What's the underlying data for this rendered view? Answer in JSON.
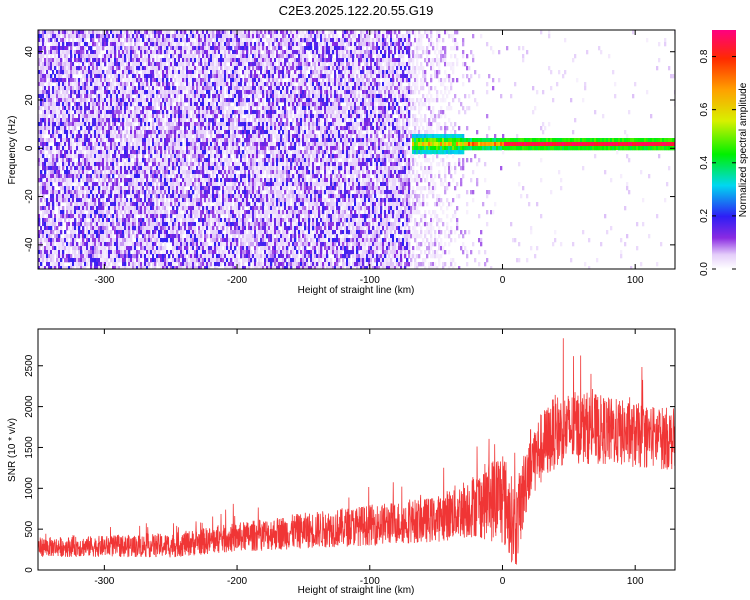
{
  "page": {
    "title": "C2E3.2025.122.20.55.G19"
  },
  "chart_data": [
    {
      "type": "heatmap",
      "title": "C2E3.2025.122.20.55.G19",
      "xlabel": "Height of straight line (km)",
      "ylabel": "Frequency (Hz)",
      "xlim": [
        -350,
        130
      ],
      "ylim": [
        -50,
        49
      ],
      "x_ticks": [
        -300,
        -200,
        -100,
        0,
        100
      ],
      "y_ticks": [
        -40,
        -20,
        0,
        20,
        40
      ],
      "colorbar": {
        "label": "Normalized spectral amplitude",
        "range": [
          0.0,
          0.9
        ],
        "ticks": [
          0.0,
          0.2,
          0.4,
          0.6,
          0.8
        ]
      },
      "features": {
        "noise_region_x": [
          -350,
          -70
        ],
        "transition_region_x": [
          -70,
          5
        ],
        "tone_x": [
          -68,
          130
        ],
        "tone_frequency_hz": 2,
        "tone_peak_amplitude": 0.85,
        "noise_amplitude": 0.1
      },
      "grid": false,
      "legend": "none"
    },
    {
      "type": "line",
      "xlabel": "Height of straight line (km)",
      "ylabel": "SNR (10 * v/v)",
      "xlim": [
        -350,
        130
      ],
      "ylim": [
        0,
        2950
      ],
      "x_ticks": [
        -300,
        -200,
        -100,
        0,
        100
      ],
      "y_ticks": [
        0,
        500,
        1000,
        1500,
        2000,
        2500
      ],
      "line_color": "#f03535",
      "trend": {
        "x": [
          -350,
          -300,
          -250,
          -200,
          -150,
          -100,
          -50,
          -20,
          0,
          10,
          20,
          40,
          60,
          80,
          100,
          130
        ],
        "mean": [
          280,
          290,
          300,
          400,
          480,
          550,
          620,
          800,
          900,
          500,
          1300,
          1700,
          1750,
          1700,
          1650,
          1600
        ],
        "spread": [
          120,
          130,
          150,
          180,
          220,
          250,
          280,
          400,
          600,
          500,
          450,
          450,
          450,
          420,
          400,
          380
        ]
      },
      "grid": false,
      "legend": "none"
    }
  ]
}
